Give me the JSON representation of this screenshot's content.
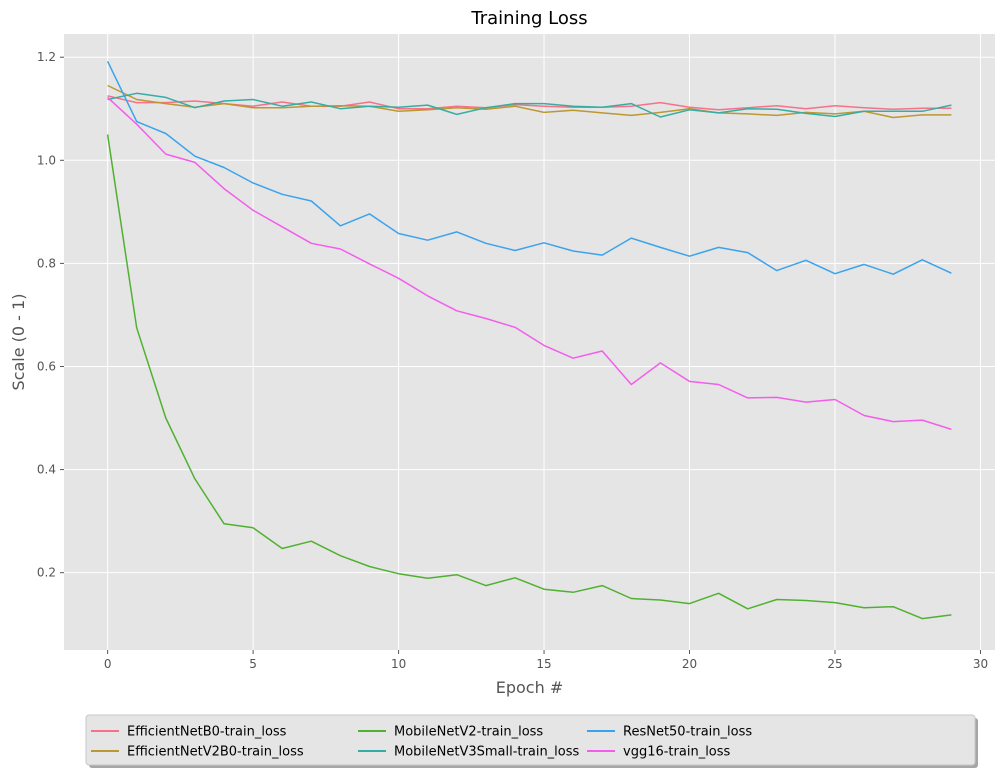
{
  "chart_data": {
    "type": "line",
    "title": "Training Loss",
    "xlabel": "Epoch #",
    "ylabel": "Scale (0 - 1)",
    "xlim": [
      -1.5,
      30.5
    ],
    "ylim": [
      0.05,
      1.245
    ],
    "xticks": [
      0,
      5,
      10,
      15,
      20,
      25,
      30
    ],
    "yticks": [
      0.2,
      0.4,
      0.6,
      0.8,
      1.0,
      1.2
    ],
    "xtick_labels": [
      "0",
      "5",
      "10",
      "15",
      "20",
      "25",
      "30"
    ],
    "ytick_labels": [
      "0.2",
      "0.4",
      "0.6",
      "0.8",
      "1.0",
      "1.2"
    ],
    "grid": true,
    "legend_position": "bottom-center",
    "x": [
      0,
      1,
      2,
      3,
      4,
      5,
      6,
      7,
      8,
      9,
      10,
      11,
      12,
      13,
      14,
      15,
      16,
      17,
      18,
      19,
      20,
      21,
      22,
      23,
      24,
      25,
      26,
      27,
      28,
      29
    ],
    "series": [
      {
        "name": "EfficientNetB0-train_loss",
        "color": "#f77189",
        "values": [
          1.125,
          1.112,
          1.112,
          1.115,
          1.11,
          1.105,
          1.113,
          1.105,
          1.105,
          1.113,
          1.1,
          1.1,
          1.105,
          1.102,
          1.108,
          1.105,
          1.103,
          1.103,
          1.105,
          1.112,
          1.103,
          1.098,
          1.102,
          1.106,
          1.1,
          1.106,
          1.102,
          1.099,
          1.101,
          1.101
        ]
      },
      {
        "name": "EfficientNetV2B0-train_loss",
        "color": "#bb9832",
        "values": [
          1.145,
          1.118,
          1.11,
          1.103,
          1.11,
          1.102,
          1.102,
          1.105,
          1.106,
          1.105,
          1.095,
          1.098,
          1.102,
          1.099,
          1.105,
          1.093,
          1.097,
          1.092,
          1.087,
          1.093,
          1.1,
          1.092,
          1.09,
          1.087,
          1.093,
          1.09,
          1.095,
          1.083,
          1.088,
          1.088
        ]
      },
      {
        "name": "MobileNetV2-train_loss",
        "color": "#50b131",
        "values": [
          1.05,
          0.675,
          0.5,
          0.382,
          0.295,
          0.287,
          0.247,
          0.261,
          0.233,
          0.212,
          0.198,
          0.189,
          0.196,
          0.175,
          0.19,
          0.168,
          0.162,
          0.175,
          0.15,
          0.147,
          0.14,
          0.16,
          0.13,
          0.148,
          0.146,
          0.142,
          0.132,
          0.134,
          0.111,
          0.118
        ]
      },
      {
        "name": "MobileNetV3Small-train_loss",
        "color": "#36ada4",
        "values": [
          1.118,
          1.13,
          1.122,
          1.102,
          1.115,
          1.118,
          1.105,
          1.113,
          1.1,
          1.105,
          1.103,
          1.107,
          1.089,
          1.102,
          1.11,
          1.11,
          1.105,
          1.103,
          1.11,
          1.084,
          1.098,
          1.092,
          1.1,
          1.099,
          1.091,
          1.085,
          1.095,
          1.095,
          1.095,
          1.107
        ]
      },
      {
        "name": "ResNet50-train_loss",
        "color": "#3ba3ec",
        "values": [
          1.192,
          1.075,
          1.052,
          1.008,
          0.986,
          0.956,
          0.934,
          0.921,
          0.873,
          0.896,
          0.858,
          0.845,
          0.861,
          0.839,
          0.825,
          0.84,
          0.824,
          0.816,
          0.849,
          0.831,
          0.814,
          0.831,
          0.821,
          0.786,
          0.806,
          0.78,
          0.798,
          0.779,
          0.807,
          0.781
        ]
      },
      {
        "name": "vgg16-train_loss",
        "color": "#f45deb",
        "values": [
          1.122,
          1.07,
          1.012,
          0.996,
          0.945,
          0.903,
          0.871,
          0.839,
          0.828,
          0.799,
          0.771,
          0.737,
          0.708,
          0.693,
          0.676,
          0.641,
          0.616,
          0.63,
          0.565,
          0.607,
          0.571,
          0.565,
          0.539,
          0.54,
          0.531,
          0.536,
          0.505,
          0.493,
          0.496,
          0.478
        ]
      }
    ]
  }
}
